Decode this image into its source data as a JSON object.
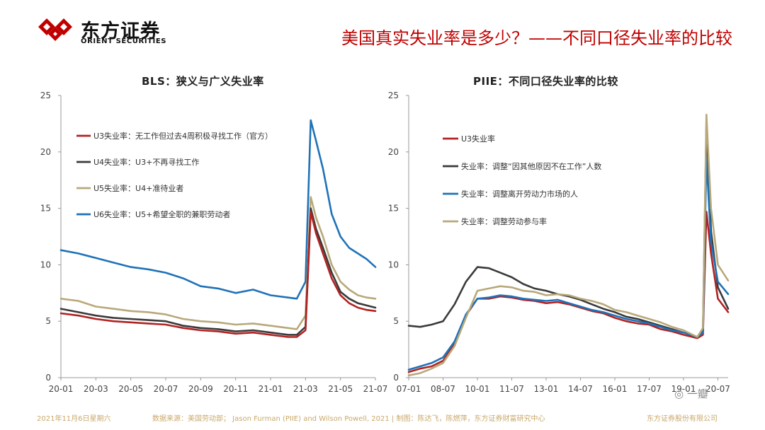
{
  "header": {
    "logo_cn": "东方证券",
    "logo_en": "ORIENT SECURITIES",
    "slide_title": "美国真实失业率是多少？——不同口径失业率的比较"
  },
  "footer": {
    "date": "2021年11月6日星期六",
    "source": "数据来源：美国劳动部； Jason Furman (PIIE) and Wilson Powell, 2021 | 制图：陈达飞，陈燃萍，东方证券财富研究中心",
    "company": "东方证券股份有限公司",
    "watermark": "一瓣"
  },
  "colors": {
    "red": "#b22222",
    "dark": "#3a3a3a",
    "tan": "#b8a97a",
    "blue": "#1f72b8",
    "accent": "#c00000"
  },
  "chart_data": [
    {
      "type": "line",
      "title": "BLS：狭义与广义失业率",
      "ylim": [
        0,
        25
      ],
      "yticks": [
        0,
        5,
        10,
        15,
        20,
        25
      ],
      "x_tick_labels": [
        "20-01",
        "20-03",
        "20-05",
        "20-07",
        "20-09",
        "20-11",
        "21-01",
        "21-03",
        "21-05",
        "21-07"
      ],
      "x_tick_positions": [
        0,
        2,
        4,
        6,
        8,
        10,
        12,
        14,
        16,
        18
      ],
      "x_range": [
        0,
        18
      ],
      "series": [
        {
          "name": "U6失业率：U5+希望全职的兼职劳动者",
          "color": "#1f72b8",
          "x": [
            0,
            1,
            2,
            3,
            4,
            5,
            6,
            7,
            8,
            9,
            10,
            11,
            12,
            13,
            13.5,
            14,
            14.3,
            14.6,
            15,
            15.5,
            16,
            16.5,
            17,
            17.5,
            18
          ],
          "y": [
            11.3,
            11.0,
            10.6,
            10.2,
            9.8,
            9.6,
            9.3,
            8.8,
            8.1,
            7.9,
            7.5,
            7.8,
            7.3,
            7.1,
            7.0,
            8.5,
            22.8,
            21.0,
            18.5,
            14.5,
            12.5,
            11.5,
            11.0,
            10.5,
            9.8
          ]
        },
        {
          "name": "U5失业率：U4+准待业者",
          "color": "#b8a97a",
          "x": [
            0,
            1,
            2,
            3,
            4,
            5,
            6,
            7,
            8,
            9,
            10,
            11,
            12,
            13,
            13.5,
            14,
            14.3,
            14.6,
            15,
            15.5,
            16,
            16.5,
            17,
            17.5,
            18
          ],
          "y": [
            7.0,
            6.8,
            6.3,
            6.1,
            5.9,
            5.8,
            5.6,
            5.2,
            5.0,
            4.9,
            4.7,
            4.8,
            4.6,
            4.4,
            4.3,
            5.5,
            16.0,
            14.2,
            12.5,
            10.0,
            8.5,
            7.8,
            7.3,
            7.1,
            7.0
          ]
        },
        {
          "name": "U4失业率：U3+不再寻找工作",
          "color": "#3a3a3a",
          "x": [
            0,
            1,
            2,
            3,
            4,
            5,
            6,
            7,
            8,
            9,
            10,
            11,
            12,
            13,
            13.5,
            14,
            14.3,
            14.6,
            15,
            15.5,
            16,
            16.5,
            17,
            17.5,
            18
          ],
          "y": [
            6.1,
            5.8,
            5.5,
            5.3,
            5.2,
            5.1,
            5.0,
            4.6,
            4.4,
            4.3,
            4.1,
            4.2,
            4.0,
            3.8,
            3.8,
            4.5,
            15.0,
            13.2,
            11.5,
            9.3,
            7.6,
            7.0,
            6.6,
            6.4,
            6.2
          ]
        },
        {
          "name": "U3失业率：无工作但过去4周积极寻找工作（官方）",
          "color": "#b22222",
          "x": [
            0,
            1,
            2,
            3,
            4,
            5,
            6,
            7,
            8,
            9,
            10,
            11,
            12,
            13,
            13.5,
            14,
            14.3,
            14.6,
            15,
            15.5,
            16,
            16.5,
            17,
            17.5,
            18
          ],
          "y": [
            5.7,
            5.5,
            5.2,
            5.0,
            4.9,
            4.8,
            4.7,
            4.4,
            4.2,
            4.1,
            3.9,
            4.0,
            3.8,
            3.6,
            3.6,
            4.2,
            14.7,
            12.8,
            11.0,
            8.8,
            7.3,
            6.6,
            6.2,
            6.0,
            5.9
          ]
        }
      ]
    },
    {
      "type": "line",
      "title": "PIIE：不同口径失业率的比较",
      "ylim": [
        0,
        25
      ],
      "yticks": [
        0,
        5,
        10,
        15,
        20,
        25
      ],
      "x_tick_labels": [
        "07-01",
        "08-07",
        "10-01",
        "11-07",
        "13-01",
        "14-07",
        "16-01",
        "17-07",
        "19-01",
        "20-07"
      ],
      "x_tick_positions": [
        0,
        1.5,
        3,
        4.5,
        6,
        7.5,
        9,
        10.5,
        12,
        13.5
      ],
      "x_range": [
        0,
        13.95
      ],
      "series": [
        {
          "name": "U3失业率",
          "color": "#b22222",
          "x": [
            0,
            0.5,
            1,
            1.5,
            2,
            2.5,
            3,
            3.5,
            4,
            4.5,
            5,
            5.5,
            6,
            6.5,
            7,
            7.5,
            8,
            8.5,
            9,
            9.5,
            10,
            10.5,
            11,
            11.5,
            12,
            12.6,
            12.85,
            13.0,
            13.2,
            13.5,
            13.95
          ],
          "y": [
            0.5,
            0.8,
            1.0,
            1.5,
            3.0,
            5.5,
            7.0,
            7.0,
            7.2,
            7.1,
            6.9,
            6.8,
            6.6,
            6.7,
            6.5,
            6.2,
            5.9,
            5.7,
            5.3,
            5.0,
            4.8,
            4.7,
            4.3,
            4.1,
            3.8,
            3.5,
            3.8,
            14.7,
            11.0,
            7.0,
            5.8
          ]
        },
        {
          "name": "失业率：调整“因其他原因不在工作”人数",
          "color": "#3a3a3a",
          "x": [
            0,
            0.5,
            1,
            1.5,
            2,
            2.5,
            3,
            3.5,
            4,
            4.5,
            5,
            5.5,
            6,
            6.5,
            7,
            7.5,
            8,
            8.5,
            9,
            9.5,
            10,
            10.5,
            11,
            11.5,
            12,
            12.6,
            12.85,
            13.0,
            13.2,
            13.5,
            13.95
          ],
          "y": [
            4.6,
            4.5,
            4.7,
            5.0,
            6.5,
            8.5,
            9.8,
            9.7,
            9.3,
            8.9,
            8.3,
            7.9,
            7.7,
            7.4,
            7.2,
            6.9,
            6.5,
            6.1,
            5.8,
            5.4,
            5.2,
            4.9,
            4.6,
            4.3,
            4.0,
            3.6,
            4.2,
            22.5,
            13.0,
            8.0,
            6.1
          ]
        },
        {
          "name": "失业率：调整离开劳动力市场的人",
          "color": "#1f72b8",
          "x": [
            0,
            0.5,
            1,
            1.5,
            2,
            2.5,
            3,
            3.5,
            4,
            4.5,
            5,
            5.5,
            6,
            6.5,
            7,
            7.5,
            8,
            8.5,
            9,
            9.5,
            10,
            10.5,
            11,
            11.5,
            12,
            12.6,
            12.85,
            13.0,
            13.2,
            13.5,
            13.95
          ],
          "y": [
            0.7,
            1.0,
            1.3,
            1.8,
            3.2,
            5.6,
            7.0,
            7.1,
            7.3,
            7.2,
            7.0,
            6.9,
            6.8,
            6.9,
            6.6,
            6.3,
            6.0,
            5.8,
            5.5,
            5.2,
            5.0,
            4.8,
            4.5,
            4.2,
            4.0,
            3.6,
            4.0,
            19.5,
            12.0,
            8.5,
            7.4
          ]
        },
        {
          "name": "失业率：调整劳动参与率",
          "color": "#b8a97a",
          "x": [
            0,
            0.5,
            1,
            1.5,
            2,
            2.5,
            3,
            3.5,
            4,
            4.5,
            5,
            5.5,
            6,
            6.5,
            7,
            7.5,
            8,
            8.5,
            9,
            9.5,
            10,
            10.5,
            11,
            11.5,
            12,
            12.6,
            12.85,
            13.0,
            13.2,
            13.5,
            13.95
          ],
          "y": [
            0.2,
            0.4,
            0.8,
            1.3,
            2.8,
            5.3,
            7.7,
            7.9,
            8.1,
            8.0,
            7.7,
            7.6,
            7.3,
            7.4,
            7.3,
            7.0,
            6.8,
            6.5,
            6.0,
            5.8,
            5.5,
            5.2,
            4.9,
            4.5,
            4.2,
            3.6,
            4.4,
            23.3,
            15.0,
            10.0,
            8.6
          ]
        }
      ]
    }
  ]
}
